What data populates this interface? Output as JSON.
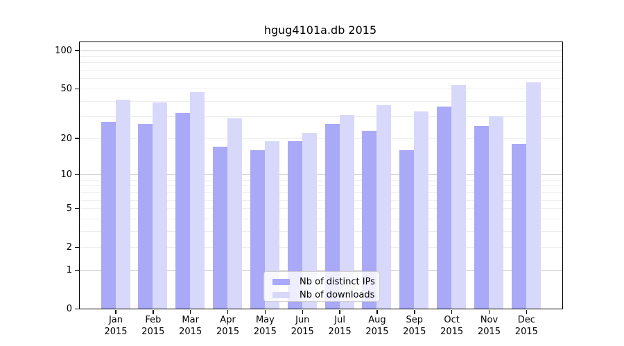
{
  "chart_data": {
    "type": "bar",
    "title": "hgug4101a.db 2015",
    "y_scale": "log1p",
    "categories": [
      "Jan",
      "Feb",
      "Mar",
      "Apr",
      "May",
      "Jun",
      "Jul",
      "Aug",
      "Sep",
      "Oct",
      "Nov",
      "Dec"
    ],
    "category_year": "2015",
    "series": [
      {
        "name": "Nb of distinct IPs",
        "color": "#a9a9f8",
        "values": [
          27,
          26,
          32,
          17,
          16,
          19,
          26,
          23,
          16,
          36,
          25,
          18
        ]
      },
      {
        "name": "Nb of downloads",
        "color": "#d8d8fb",
        "values": [
          41,
          39,
          47,
          29,
          19,
          22,
          31,
          37,
          33,
          53,
          30,
          56
        ]
      }
    ],
    "y_ticks": [
      0,
      1,
      2,
      5,
      10,
      20,
      50,
      100
    ],
    "y_major_gridlines": [
      1,
      10,
      100
    ],
    "y_minor_gridlines": [
      2,
      3,
      4,
      5,
      6,
      7,
      8,
      9,
      20,
      30,
      40,
      50,
      60,
      70,
      80,
      90
    ],
    "ylim": [
      0,
      115
    ],
    "grid": true,
    "legend_position": "bottom-center-inside"
  },
  "colors": {
    "grid_minor": "#ededed",
    "grid_major": "#c9c9c9",
    "axis": "#000000",
    "legend_border": "#cfcfcf",
    "background": "#ffffff"
  }
}
